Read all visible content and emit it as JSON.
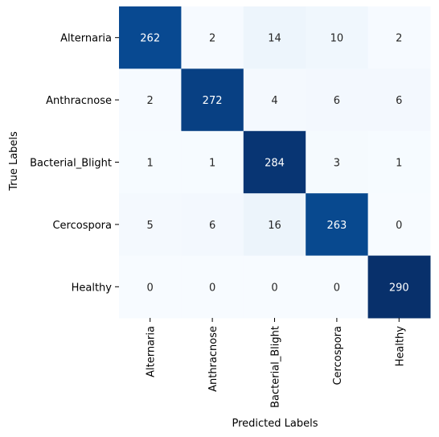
{
  "chart_data": {
    "type": "heatmap",
    "title": "",
    "xlabel": "Predicted Labels",
    "ylabel": "True Labels",
    "x_categories": [
      "Alternaria",
      "Anthracnose",
      "Bacterial_Blight",
      "Cercospora",
      "Healthy"
    ],
    "y_categories": [
      "Alternaria",
      "Anthracnose",
      "Bacterial_Blight",
      "Cercospora",
      "Healthy"
    ],
    "values": [
      [
        262,
        2,
        14,
        10,
        2
      ],
      [
        2,
        272,
        4,
        6,
        6
      ],
      [
        1,
        1,
        284,
        3,
        1
      ],
      [
        5,
        6,
        16,
        263,
        0
      ],
      [
        0,
        0,
        0,
        0,
        290
      ]
    ],
    "colormap": "Blues",
    "color_range": [
      0,
      290
    ],
    "colorbar": false,
    "annotations": true
  }
}
